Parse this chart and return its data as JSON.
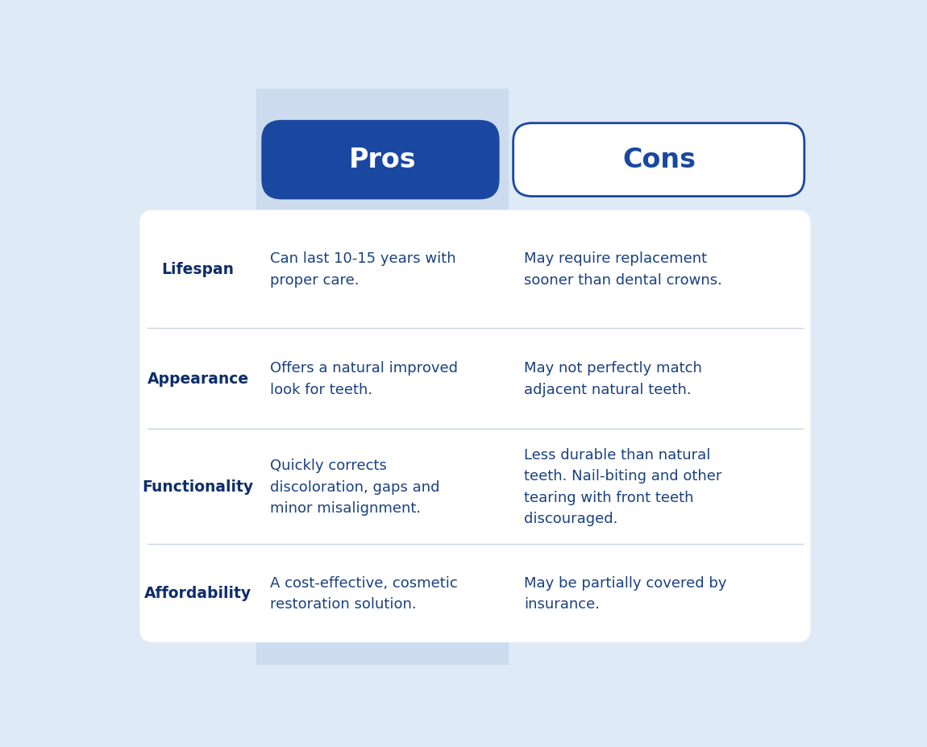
{
  "background_color": "#deeaf5",
  "header_pros_bg": "#1a47a0",
  "header_cons_bg": "#ffffff",
  "header_pros_text": "#ffffff",
  "header_cons_text": "#1a47a0",
  "pros_col_bg": "#ccdcee",
  "row_label_color": "#0d2d6b",
  "text_color": "#1a4080",
  "divider_color": "#c5d5e5",
  "row_labels": [
    "Lifespan",
    "Appearance",
    "Functionality",
    "Affordability"
  ],
  "pros_text": [
    "Can last 10-15 years with\nproper care.",
    "Offers a natural improved\nlook for teeth.",
    "Quickly corrects\ndiscoloration, gaps and\nminor misalignment.",
    "A cost-effective, cosmetic\nrestoration solution."
  ],
  "cons_text": [
    "May require replacement\nsooner than dental crowns.",
    "May not perfectly match\nadjacent natural teeth.",
    "Less durable than natural\nteeth. Nail-biting and other\ntearing with front teeth\ndiscouraged.",
    "May be partially covered by\ninsurance."
  ],
  "title_pros": "Pros",
  "title_cons": "Cons",
  "header_fontsize": 24,
  "label_fontsize": 13.5,
  "cell_fontsize": 13
}
